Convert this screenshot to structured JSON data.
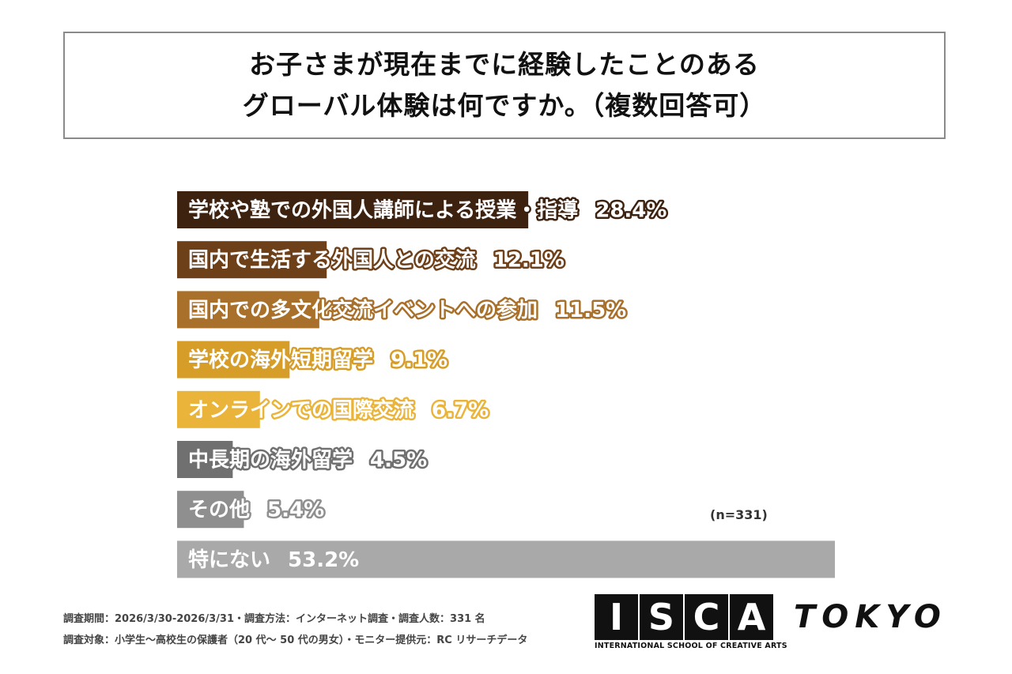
{
  "title": {
    "line1": "お子さまが現在までに経験したことのある",
    "line2": "グローバル体験は何ですか。（複数回答可）"
  },
  "chart_data": {
    "type": "bar",
    "orientation": "horizontal",
    "value_unit": "%",
    "xlim": [
      0,
      53.2
    ],
    "categories": [
      "学校や塾での外国人講師による授業・指導",
      "国内で生活する外国人との交流",
      "国内での多文化交流イベントへの参加",
      "学校の海外短期留学",
      "オンラインでの国際交流",
      "中長期の海外留学",
      "その他",
      "特にない"
    ],
    "values": [
      28.4,
      12.1,
      11.5,
      9.1,
      6.7,
      4.5,
      5.4,
      53.2
    ],
    "value_labels": [
      "28.4%",
      "12.1%",
      "11.5%",
      "9.1%",
      "6.7%",
      "4.5%",
      "5.4%",
      "53.2%"
    ],
    "colors": [
      "#3e2210",
      "#6e4019",
      "#a8702a",
      "#d69d28",
      "#eab43a",
      "#707070",
      "#8f8f8f",
      "#a9a9a9"
    ],
    "grid": false,
    "legend": "none"
  },
  "note": "(n=331)",
  "footer": {
    "line1": "調査期間：2026/3/30-2026/3/31・調査方法：インターネット調査・調査人数：331 名",
    "line2": "調査対象：小学生〜高校生の保護者（20 代〜 50 代の男女）・モニター提供元：RC リサーチデータ"
  },
  "logo": {
    "letters": [
      "I",
      "S",
      "C",
      "A"
    ],
    "word": "TOKYO",
    "subtitle": "INTERNATIONAL SCHOOL OF CREATIVE ARTS"
  }
}
